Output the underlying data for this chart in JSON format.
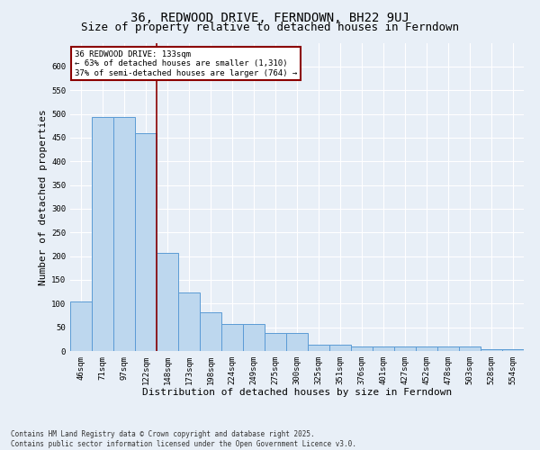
{
  "title_line1": "36, REDWOOD DRIVE, FERNDOWN, BH22 9UJ",
  "title_line2": "Size of property relative to detached houses in Ferndown",
  "xlabel": "Distribution of detached houses by size in Ferndown",
  "ylabel": "Number of detached properties",
  "categories": [
    "46sqm",
    "71sqm",
    "97sqm",
    "122sqm",
    "148sqm",
    "173sqm",
    "198sqm",
    "224sqm",
    "249sqm",
    "275sqm",
    "300sqm",
    "325sqm",
    "351sqm",
    "376sqm",
    "401sqm",
    "427sqm",
    "452sqm",
    "478sqm",
    "503sqm",
    "528sqm",
    "554sqm"
  ],
  "values": [
    105,
    493,
    493,
    460,
    207,
    123,
    82,
    57,
    57,
    38,
    38,
    13,
    13,
    10,
    10,
    10,
    10,
    10,
    10,
    3,
    3
  ],
  "bar_color": "#BDD7EE",
  "bar_edge_color": "#5B9BD5",
  "vline_x": 3.5,
  "vline_color": "#8B0000",
  "annotation_text": "36 REDWOOD DRIVE: 133sqm\n← 63% of detached houses are smaller (1,310)\n37% of semi-detached houses are larger (764) →",
  "annotation_box_color": "#8B0000",
  "annotation_box_fill": "#ffffff",
  "ylim": [
    0,
    650
  ],
  "yticks": [
    0,
    50,
    100,
    150,
    200,
    250,
    300,
    350,
    400,
    450,
    500,
    550,
    600
  ],
  "footer_text": "Contains HM Land Registry data © Crown copyright and database right 2025.\nContains public sector information licensed under the Open Government Licence v3.0.",
  "background_color": "#E8EFF7",
  "plot_bg_color": "#E8EFF7",
  "grid_color": "#ffffff",
  "title_fontsize": 10,
  "subtitle_fontsize": 9,
  "tick_fontsize": 6.5,
  "label_fontsize": 8,
  "footer_fontsize": 5.5
}
